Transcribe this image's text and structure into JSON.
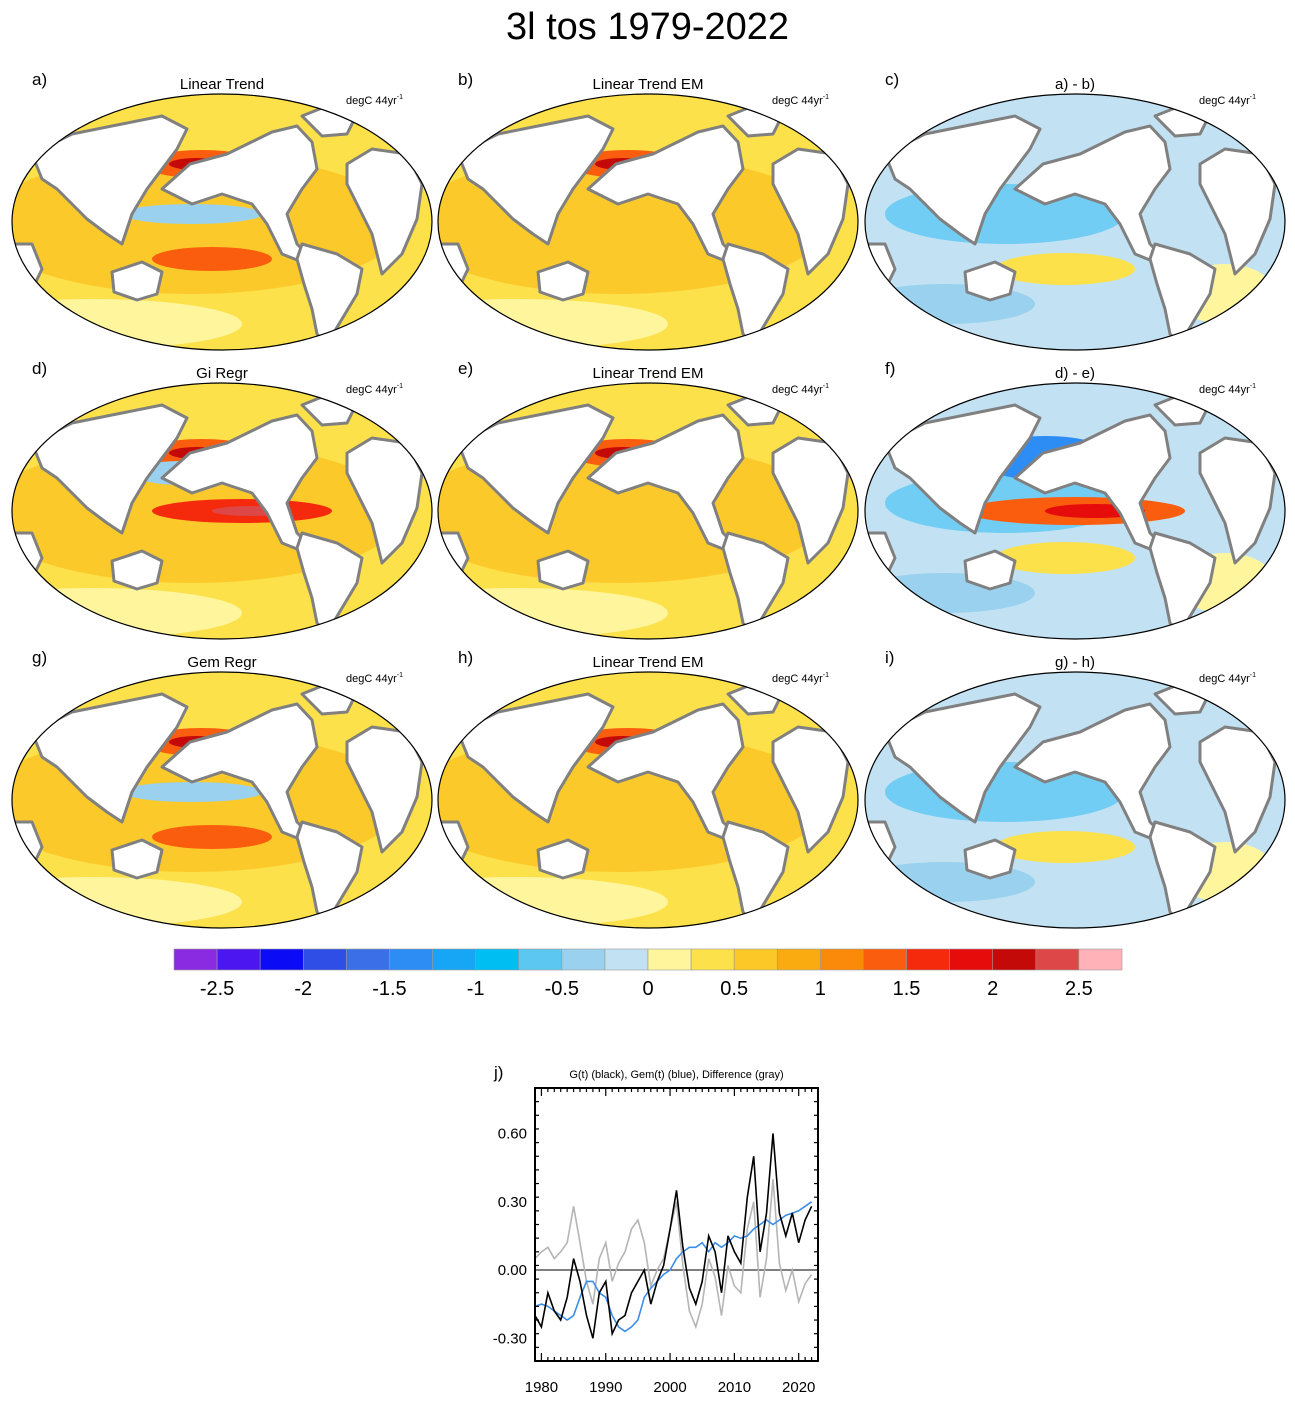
{
  "title": "3l tos 1979-2022",
  "panels": [
    {
      "letter": "a)",
      "title": "Linear Trend",
      "units": "degC 44yr",
      "units_sup": "-1"
    },
    {
      "letter": "b)",
      "title": "Linear Trend EM",
      "units": "degC 44yr",
      "units_sup": "-1"
    },
    {
      "letter": "c)",
      "title": "a) - b)",
      "units": "degC 44yr",
      "units_sup": "-1"
    },
    {
      "letter": "d)",
      "title": "Gi Regr",
      "units": "degC 44yr",
      "units_sup": "-1"
    },
    {
      "letter": "e)",
      "title": "Linear Trend EM",
      "units": "degC 44yr",
      "units_sup": "-1"
    },
    {
      "letter": "f)",
      "title": "d) - e)",
      "units": "degC 44yr",
      "units_sup": "-1"
    },
    {
      "letter": "g)",
      "title": "Gem Regr",
      "units": "degC 44yr",
      "units_sup": "-1"
    },
    {
      "letter": "h)",
      "title": "Linear Trend EM",
      "units": "degC 44yr",
      "units_sup": "-1"
    },
    {
      "letter": "i)",
      "title": "g) - h)",
      "units": "degC 44yr",
      "units_sup": "-1"
    }
  ],
  "colorbar": {
    "colors": [
      "#8a2be2",
      "#4b16f0",
      "#0b0bf5",
      "#2f4ee6",
      "#3b6fe8",
      "#2e8cf5",
      "#17a6f5",
      "#00bdf2",
      "#5cc8f2",
      "#99d1ee",
      "#c2e2f3",
      "#fff59d",
      "#fde14a",
      "#fbc827",
      "#f9ab10",
      "#fb8a0a",
      "#fa5d0e",
      "#f52a0d",
      "#e60c0c",
      "#c40909",
      "#dd4747",
      "#ffb3b8"
    ],
    "tick_labels": [
      "-2.5",
      "-2",
      "-1.5",
      "-1",
      "-0.5",
      "0",
      "0.5",
      "1",
      "1.5",
      "2",
      "2.5"
    ]
  },
  "chart_data": {
    "type": "line",
    "letter": "j)",
    "title": "G(t)  (black), Gem(t) (blue), Difference (gray)",
    "xlim": [
      1979,
      2023
    ],
    "ylim": [
      -0.4,
      0.8
    ],
    "x_ticks": [
      "1980",
      "1990",
      "2000",
      "2010",
      "2020"
    ],
    "y_ticks": [
      "-0.30",
      "0.00",
      "0.30",
      "0.60"
    ],
    "series": [
      {
        "name": "G(t)",
        "color": "#000000",
        "x": [
          1979,
          1980,
          1981,
          1982,
          1983,
          1984,
          1985,
          1986,
          1987,
          1988,
          1989,
          1990,
          1991,
          1992,
          1993,
          1994,
          1995,
          1996,
          1997,
          1998,
          1999,
          2000,
          2001,
          2002,
          2003,
          2004,
          2005,
          2006,
          2007,
          2008,
          2009,
          2010,
          2011,
          2012,
          2013,
          2014,
          2015,
          2016,
          2017,
          2018,
          2019,
          2020,
          2021,
          2022
        ],
        "y": [
          -0.2,
          -0.25,
          -0.1,
          -0.18,
          -0.22,
          -0.12,
          0.05,
          -0.05,
          -0.2,
          -0.3,
          -0.1,
          -0.05,
          -0.28,
          -0.22,
          -0.2,
          -0.1,
          -0.05,
          0.0,
          -0.15,
          -0.05,
          0.02,
          0.18,
          0.35,
          0.1,
          -0.08,
          -0.15,
          -0.05,
          0.15,
          0.08,
          -0.1,
          0.15,
          0.08,
          0.03,
          0.32,
          0.5,
          0.08,
          0.25,
          0.6,
          0.25,
          0.15,
          0.25,
          0.12,
          0.22,
          0.28
        ]
      },
      {
        "name": "Gem(t)",
        "color": "#3b8ee8",
        "x": [
          1979,
          1980,
          1981,
          1982,
          1983,
          1984,
          1985,
          1986,
          1987,
          1988,
          1989,
          1990,
          1991,
          1992,
          1993,
          1994,
          1995,
          1996,
          1997,
          1998,
          1999,
          2000,
          2001,
          2002,
          2003,
          2004,
          2005,
          2006,
          2007,
          2008,
          2009,
          2010,
          2011,
          2012,
          2013,
          2014,
          2015,
          2016,
          2017,
          2018,
          2019,
          2020,
          2021,
          2022
        ],
        "y": [
          -0.16,
          -0.15,
          -0.16,
          -0.18,
          -0.2,
          -0.22,
          -0.2,
          -0.12,
          -0.05,
          -0.05,
          -0.1,
          -0.12,
          -0.2,
          -0.25,
          -0.27,
          -0.25,
          -0.22,
          -0.12,
          -0.08,
          -0.05,
          -0.02,
          0.0,
          0.05,
          0.08,
          0.1,
          0.1,
          0.12,
          0.08,
          0.12,
          0.1,
          0.12,
          0.15,
          0.14,
          0.15,
          0.18,
          0.2,
          0.22,
          0.2,
          0.22,
          0.24,
          0.25,
          0.26,
          0.28,
          0.3
        ]
      },
      {
        "name": "Difference",
        "color": "#b5b5b5",
        "x": [
          1979,
          1980,
          1981,
          1982,
          1983,
          1984,
          1985,
          1986,
          1987,
          1988,
          1989,
          1990,
          1991,
          1992,
          1993,
          1994,
          1995,
          1996,
          1997,
          1998,
          1999,
          2000,
          2001,
          2002,
          2003,
          2004,
          2005,
          2006,
          2007,
          2008,
          2009,
          2010,
          2011,
          2012,
          2013,
          2014,
          2015,
          2016,
          2017,
          2018,
          2019,
          2020,
          2021,
          2022
        ],
        "y": [
          0.05,
          0.08,
          0.1,
          0.05,
          0.08,
          0.12,
          0.28,
          0.12,
          -0.05,
          -0.15,
          0.05,
          0.12,
          -0.05,
          0.03,
          0.08,
          0.18,
          0.22,
          0.12,
          -0.07,
          0.0,
          0.05,
          0.18,
          0.3,
          0.02,
          -0.18,
          -0.25,
          -0.15,
          0.05,
          -0.03,
          -0.2,
          0.02,
          -0.07,
          -0.1,
          0.18,
          0.3,
          -0.12,
          0.05,
          0.4,
          0.03,
          -0.09,
          0.0,
          -0.14,
          -0.06,
          -0.02
        ]
      }
    ]
  }
}
